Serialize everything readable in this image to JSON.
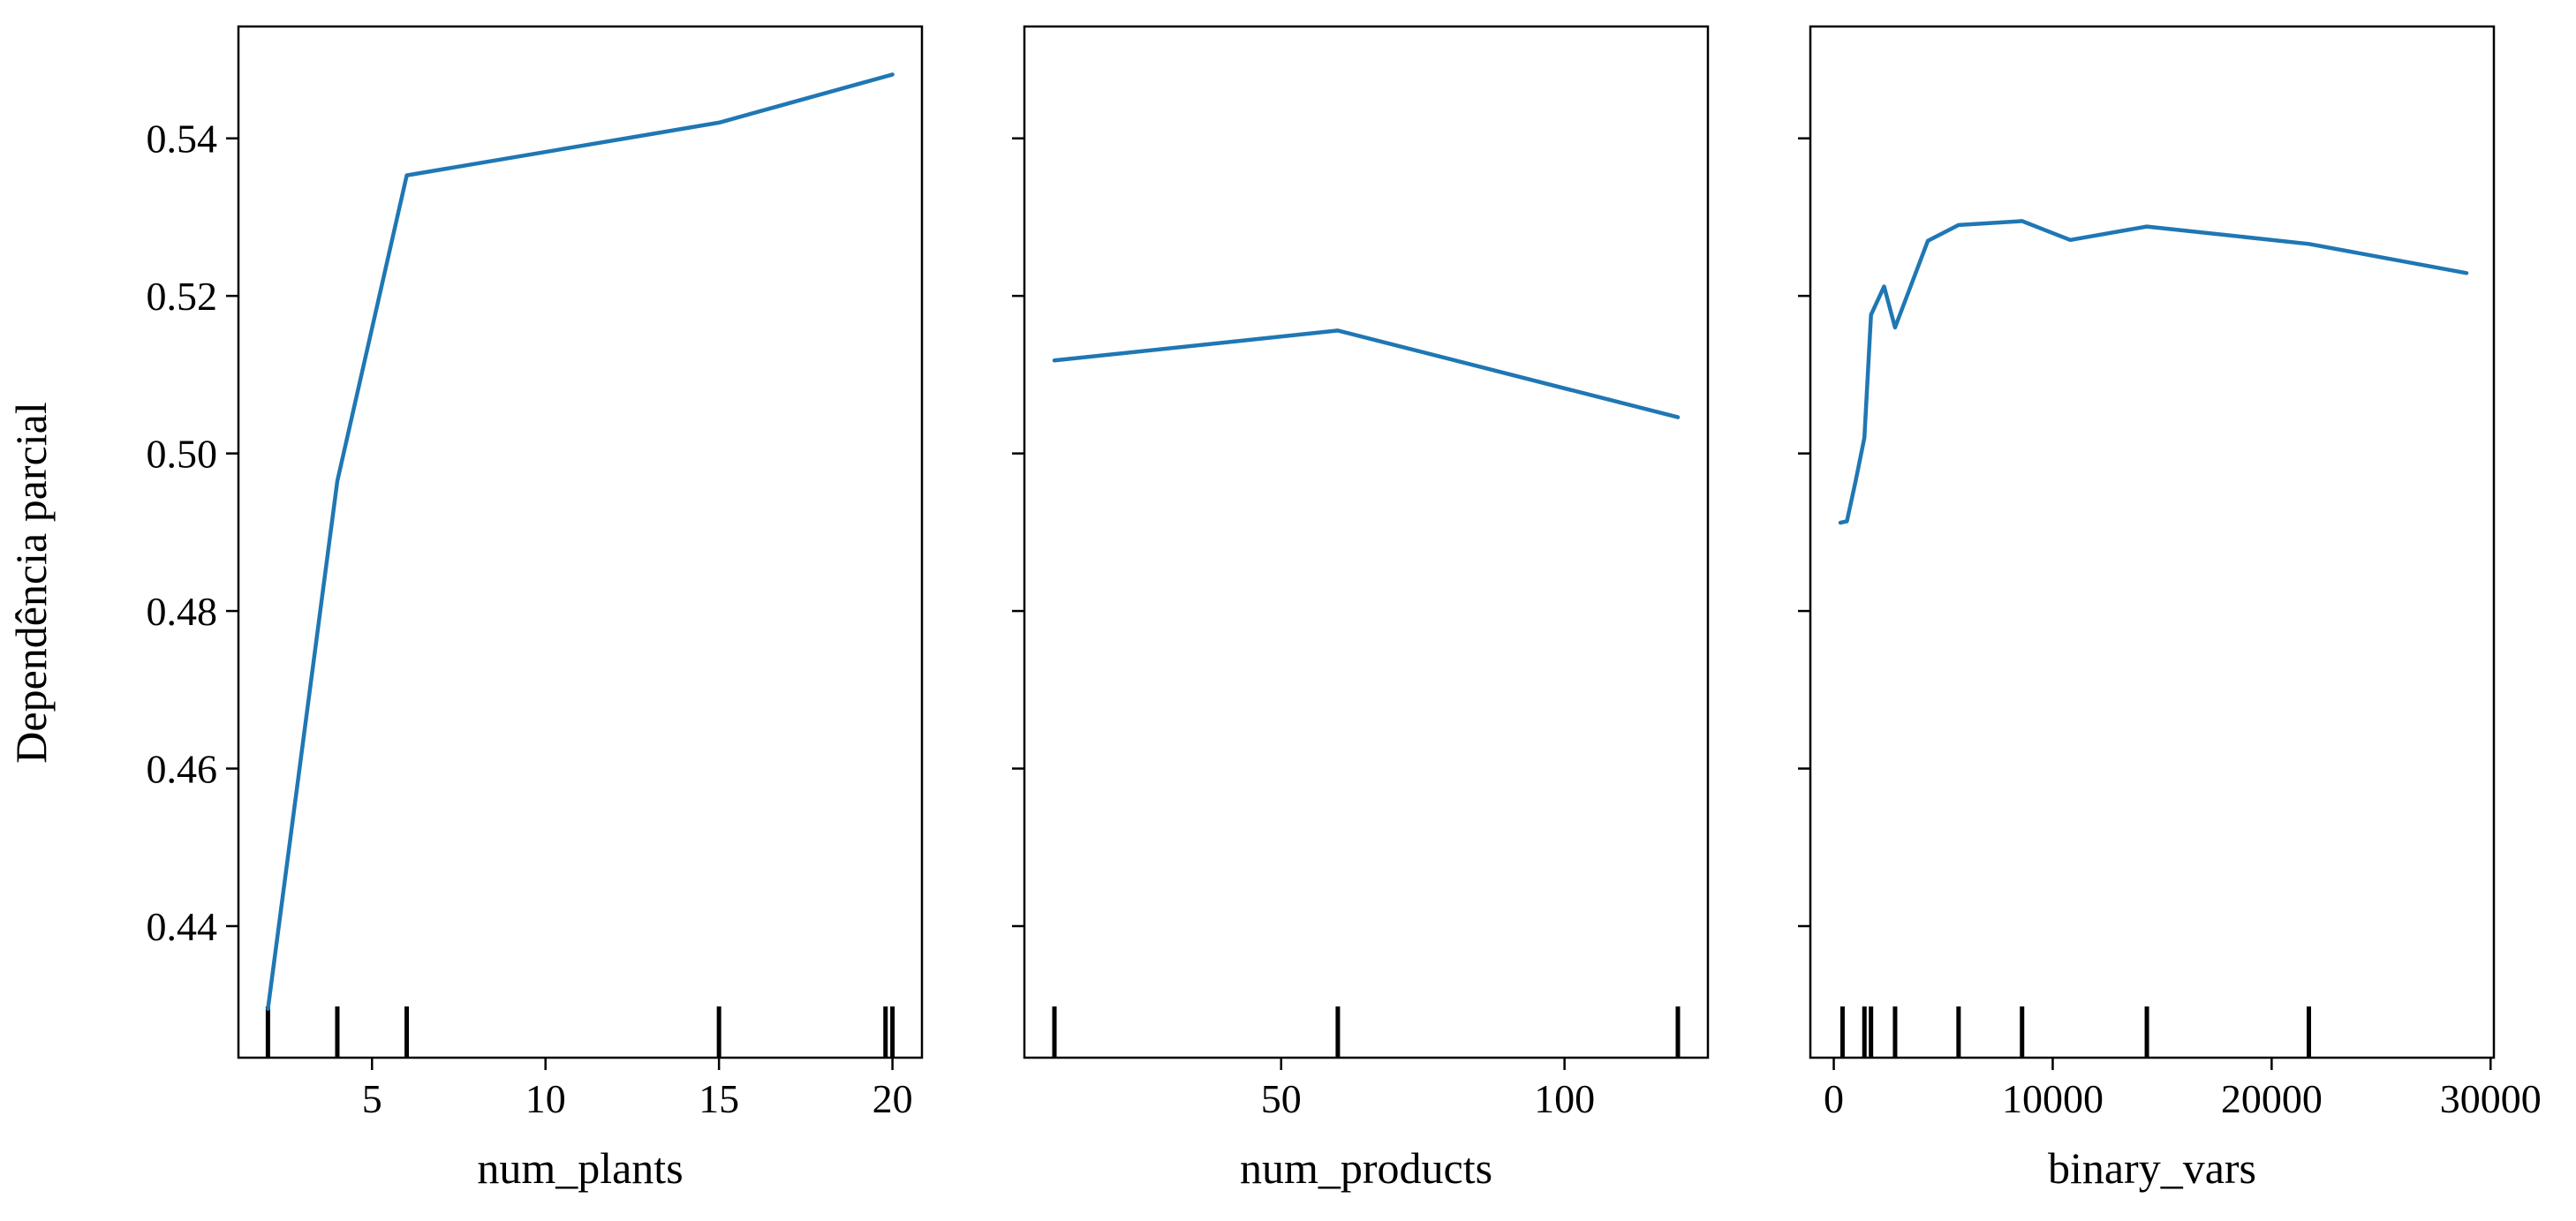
{
  "chart_data": [
    {
      "type": "line",
      "xlabel": "num_plants",
      "ylabel": "Dependência parcial",
      "xlim": [
        1.15,
        20.85
      ],
      "ylim": [
        0.4233,
        0.5542
      ],
      "xticks": [
        5,
        10,
        15,
        20
      ],
      "x_tick_labels": [
        "5",
        "10",
        "15",
        "20"
      ],
      "yticks": [
        0.44,
        0.46,
        0.48,
        0.5,
        0.52,
        0.54
      ],
      "y_tick_labels": [
        "0.44",
        "0.46",
        "0.48",
        "0.50",
        "0.52",
        "0.54"
      ],
      "series": [
        {
          "x": [
            2,
            4,
            6,
            15,
            20
          ],
          "y": [
            0.4295,
            0.4965,
            0.5353,
            0.542,
            0.5481
          ],
          "color": "#1f77b4"
        }
      ],
      "rug_x": [
        2,
        4,
        6,
        15,
        19.8,
        20
      ]
    },
    {
      "type": "line",
      "xlabel": "num_products",
      "ylabel": "",
      "xlim": [
        4.7,
        125.3
      ],
      "ylim": [
        0.4233,
        0.5542
      ],
      "xticks": [
        50,
        100
      ],
      "x_tick_labels": [
        "50",
        "100"
      ],
      "yticks": [
        0.44,
        0.46,
        0.48,
        0.5,
        0.52,
        0.54
      ],
      "y_tick_labels": [],
      "series": [
        {
          "x": [
            10,
            60,
            120
          ],
          "y": [
            0.5118,
            0.5156,
            0.5046
          ],
          "color": "#1f77b4"
        }
      ],
      "rug_x": [
        10,
        60,
        120
      ]
    },
    {
      "type": "line",
      "xlabel": "binary_vars",
      "ylabel": "",
      "xlim": [
        -1070,
        30150
      ],
      "ylim": [
        0.4233,
        0.5542
      ],
      "xticks": [
        0,
        10000,
        20000,
        30000
      ],
      "x_tick_labels": [
        "0",
        "10000",
        "20000",
        "30000"
      ],
      "yticks": [
        0.44,
        0.46,
        0.48,
        0.5,
        0.52,
        0.54
      ],
      "y_tick_labels": [],
      "series": [
        {
          "x": [
            300,
            600,
            1000,
            1400,
            1700,
            2300,
            2800,
            4300,
            5700,
            8600,
            10800,
            14300,
            21700,
            28900
          ],
          "y": [
            0.4912,
            0.4914,
            0.4965,
            0.502,
            0.5176,
            0.5212,
            0.516,
            0.527,
            0.529,
            0.5295,
            0.5271,
            0.5288,
            0.5266,
            0.5229
          ],
          "color": "#1f77b4"
        }
      ],
      "rug_x": [
        400,
        1400,
        1700,
        2800,
        5700,
        8600,
        14300,
        21700
      ]
    }
  ]
}
